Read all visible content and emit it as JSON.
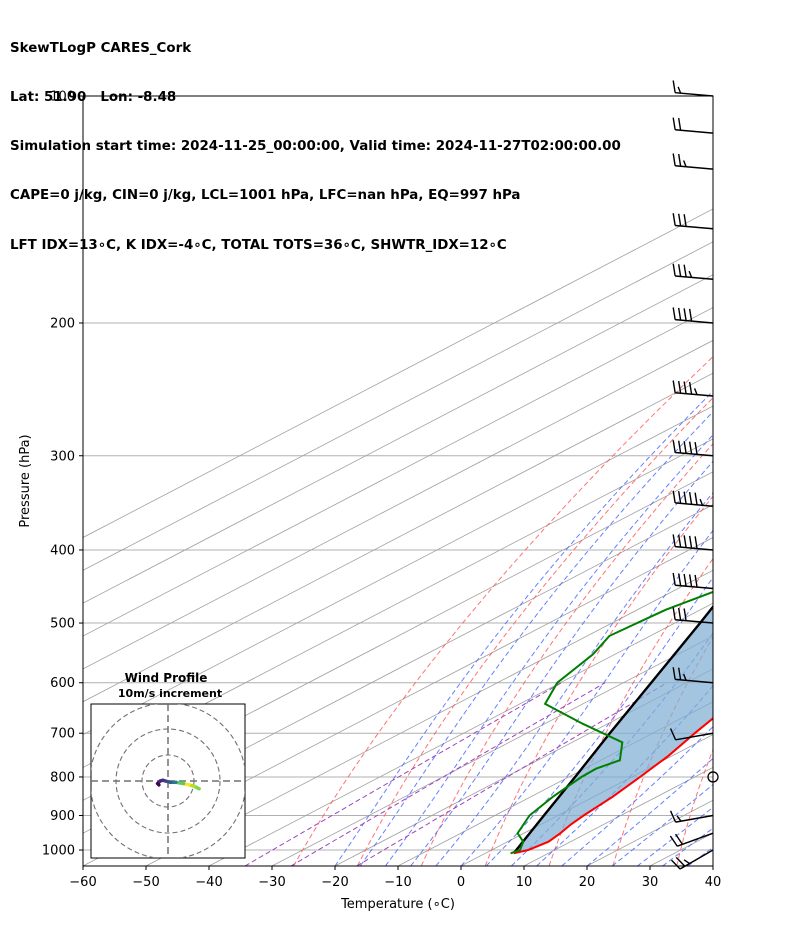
{
  "header": {
    "line1": "SkewTLogP CARES_Cork",
    "line2": "Lat: 51.90   Lon: -8.48",
    "line3": "Simulation start time: 2024-11-25_00:00:00, Valid time: 2024-11-27T02:00:00.00",
    "line4": "CAPE=0 j/kg, CIN=0 j/kg, LCL=1001 hPa, LFC=nan hPa, EQ=997 hPa",
    "line5": "LFT IDX=13∘C, K IDX=-4∘C, TOTAL TOTS=36∘C, SHWTR_IDX=12∘C"
  },
  "chart_data": {
    "type": "skewt",
    "xlabel": "Temperature (∘C)",
    "ylabel": "Pressure (hPa)",
    "xlim": [
      -60,
      40
    ],
    "ylim": [
      1050,
      100
    ],
    "x_ticks": [
      -60,
      -50,
      -40,
      -30,
      -20,
      -10,
      0,
      10,
      20,
      30,
      40
    ],
    "y_ticks": [
      100,
      200,
      300,
      400,
      500,
      600,
      700,
      800,
      900,
      1000
    ],
    "grid": true,
    "colors": {
      "temperature": "#ff0000",
      "dewpoint": "#008000",
      "parcel": "#000000",
      "cape_fill": "#7fafd4",
      "dry_adiabats": "#ff5050",
      "moist_adiabats": "#4060ff",
      "mixing_ratio": "#a040c0",
      "isotherms": "#a0a0a0"
    },
    "temperature": [
      {
        "p": 1010,
        "t": 4.5
      },
      {
        "p": 1000,
        "t": 5.8
      },
      {
        "p": 975,
        "t": 6.5
      },
      {
        "p": 950,
        "t": 5.8
      },
      {
        "p": 925,
        "t": 4.8
      },
      {
        "p": 900,
        "t": 4.1
      },
      {
        "p": 850,
        "t": 3.0
      },
      {
        "p": 800,
        "t": 1.3
      },
      {
        "p": 750,
        "t": -0.6
      },
      {
        "p": 700,
        "t": -3.3
      },
      {
        "p": 650,
        "t": -6.0
      },
      {
        "p": 600,
        "t": -9.6
      },
      {
        "p": 550,
        "t": -13.8
      },
      {
        "p": 500,
        "t": -18.5
      },
      {
        "p": 450,
        "t": -23.7
      },
      {
        "p": 400,
        "t": -30.0
      },
      {
        "p": 350,
        "t": -37.0
      },
      {
        "p": 300,
        "t": -44.5
      },
      {
        "p": 280,
        "t": -47.0
      },
      {
        "p": 250,
        "t": -48.2
      },
      {
        "p": 220,
        "t": -49.2
      },
      {
        "p": 200,
        "t": -50.0
      },
      {
        "p": 180,
        "t": -51.3
      },
      {
        "p": 160,
        "t": -52.0
      },
      {
        "p": 150,
        "t": -51.8
      },
      {
        "p": 130,
        "t": -51.5
      },
      {
        "p": 120,
        "t": -52.2
      },
      {
        "p": 110,
        "t": -52.8
      },
      {
        "p": 100,
        "t": -54.8
      }
    ],
    "dewpoint": [
      {
        "p": 1010,
        "t": 4.0
      },
      {
        "p": 1000,
        "t": 4.5
      },
      {
        "p": 975,
        "t": 2.5
      },
      {
        "p": 950,
        "t": -1.0
      },
      {
        "p": 900,
        "t": -4.5
      },
      {
        "p": 850,
        "t": -6.5
      },
      {
        "p": 800,
        "t": -8.0
      },
      {
        "p": 780,
        "t": -8.2
      },
      {
        "p": 760,
        "t": -7.0
      },
      {
        "p": 720,
        "t": -12.0
      },
      {
        "p": 680,
        "t": -24.0
      },
      {
        "p": 640,
        "t": -36.0
      },
      {
        "p": 600,
        "t": -40.5
      },
      {
        "p": 550,
        "t": -43.5
      },
      {
        "p": 520,
        "t": -46.5
      },
      {
        "p": 480,
        "t": -45.5
      },
      {
        "p": 450,
        "t": -43.0
      },
      {
        "p": 430,
        "t": -36.0
      },
      {
        "p": 410,
        "t": -32.0
      },
      {
        "p": 380,
        "t": -35.5
      },
      {
        "p": 340,
        "t": -39.0
      },
      {
        "p": 310,
        "t": -41.5
      },
      {
        "p": 280,
        "t": -46.0
      },
      {
        "p": 260,
        "t": -49.5
      },
      {
        "p": 230,
        "t": -53.0
      },
      {
        "p": 200,
        "t": -58.5
      },
      {
        "p": 180,
        "t": -61.5
      },
      {
        "p": 165,
        "t": -67.5
      },
      {
        "p": 155,
        "t": -71.0
      },
      {
        "p": 140,
        "t": -73.0
      },
      {
        "p": 125,
        "t": -74.0
      },
      {
        "p": 110,
        "t": -75.0
      },
      {
        "p": 100,
        "t": -76.5
      }
    ],
    "parcel": [
      {
        "p": 1010,
        "t": 4.5
      },
      {
        "p": 900,
        "t": -2.2
      },
      {
        "p": 800,
        "t": -9.0
      },
      {
        "p": 700,
        "t": -16.8
      },
      {
        "p": 600,
        "t": -25.6
      },
      {
        "p": 500,
        "t": -36.0
      },
      {
        "p": 400,
        "t": -49.0
      },
      {
        "p": 300,
        "t": -66.0
      },
      {
        "p": 250,
        "t": -77.0
      },
      {
        "p": 200,
        "t": -90.0
      },
      {
        "p": 150,
        "t": -106.0
      },
      {
        "p": 100,
        "t": -128.0
      }
    ],
    "wind_barbs": [
      {
        "p": 1000,
        "dir": 240,
        "kt": 25
      },
      {
        "p": 950,
        "dir": 250,
        "kt": 20
      },
      {
        "p": 900,
        "dir": 260,
        "kt": 15
      },
      {
        "p": 800,
        "dir": 0,
        "kt": 0
      },
      {
        "p": 700,
        "dir": 260,
        "kt": 10
      },
      {
        "p": 600,
        "dir": 275,
        "kt": 25
      },
      {
        "p": 500,
        "dir": 275,
        "kt": 30
      },
      {
        "p": 450,
        "dir": 275,
        "kt": 50
      },
      {
        "p": 400,
        "dir": 275,
        "kt": 50
      },
      {
        "p": 350,
        "dir": 275,
        "kt": 55
      },
      {
        "p": 300,
        "dir": 275,
        "kt": 50
      },
      {
        "p": 250,
        "dir": 275,
        "kt": 45
      },
      {
        "p": 200,
        "dir": 275,
        "kt": 40
      },
      {
        "p": 175,
        "dir": 275,
        "kt": 35
      },
      {
        "p": 150,
        "dir": 275,
        "kt": 30
      },
      {
        "p": 125,
        "dir": 275,
        "kt": 25
      },
      {
        "p": 112,
        "dir": 275,
        "kt": 20
      },
      {
        "p": 100,
        "dir": 275,
        "kt": 15
      }
    ],
    "hodograph": {
      "title": "Wind Profile",
      "subtitle": "10m/s increment",
      "ring_step_ms": 10,
      "rings": 3,
      "points": [
        {
          "u": 12,
          "v": -3
        },
        {
          "u": 10,
          "v": -2
        },
        {
          "u": 8,
          "v": -1.5
        },
        {
          "u": 6,
          "v": -1
        },
        {
          "u": 3,
          "v": -0.5
        },
        {
          "u": 1,
          "v": -0.5
        },
        {
          "u": -1,
          "v": 0
        },
        {
          "u": -2,
          "v": 0.3
        },
        {
          "u": -3,
          "v": 0
        },
        {
          "u": -4,
          "v": -1
        },
        {
          "u": -3.5,
          "v": -1.5
        }
      ]
    }
  }
}
